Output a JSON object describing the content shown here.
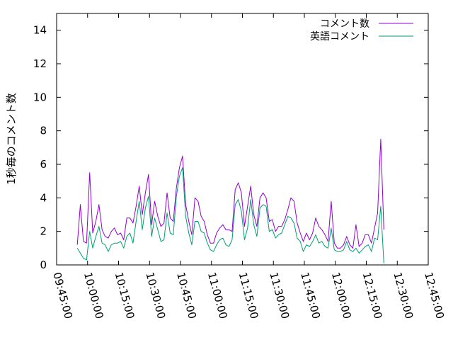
{
  "chart_data": {
    "type": "line",
    "title": "",
    "xlabel": "",
    "ylabel": "1秒毎のコメント数",
    "grid": false,
    "legend_position": "top-right",
    "xlim": [
      "09:45:00",
      "12:45:00"
    ],
    "ylim": [
      0,
      15
    ],
    "x_ticks": [
      "09:45:00",
      "10:00:00",
      "10:15:00",
      "10:30:00",
      "10:45:00",
      "11:00:00",
      "11:15:00",
      "11:30:00",
      "11:45:00",
      "12:00:00",
      "12:15:00",
      "12:30:00",
      "12:45:00"
    ],
    "y_ticks": [
      0,
      2,
      4,
      6,
      8,
      10,
      12,
      14
    ],
    "x_start": "09:55:00",
    "x_step_seconds": 90,
    "series": [
      {
        "name": "コメント数",
        "color": "#9400d3",
        "values": [
          1.2,
          3.6,
          1.4,
          1.3,
          5.5,
          1.9,
          2.6,
          3.6,
          2.1,
          1.7,
          1.6,
          2.0,
          2.2,
          1.8,
          1.9,
          1.5,
          2.8,
          2.8,
          2.5,
          3.5,
          4.7,
          3.0,
          4.3,
          5.4,
          2.4,
          3.8,
          2.9,
          2.3,
          2.5,
          4.3,
          2.8,
          2.6,
          4.6,
          5.8,
          6.5,
          3.6,
          2.6,
          1.8,
          4.0,
          3.8,
          2.9,
          2.6,
          1.8,
          1.3,
          1.3,
          1.9,
          2.2,
          2.4,
          2.1,
          2.1,
          2.0,
          4.5,
          4.9,
          4.3,
          2.3,
          3.5,
          4.7,
          3.0,
          2.3,
          4.0,
          4.3,
          4.0,
          2.6,
          2.7,
          2.0,
          2.3,
          2.3,
          2.7,
          3.3,
          4.0,
          3.8,
          2.5,
          1.9,
          1.4,
          1.9,
          1.5,
          1.9,
          2.8,
          2.3,
          2.1,
          1.8,
          1.4,
          3.8,
          1.3,
          1.0,
          1.0,
          1.2,
          1.7,
          1.2,
          1.0,
          2.4,
          1.1,
          1.3,
          1.8,
          1.8,
          1.3,
          2.2,
          3.1,
          7.5,
          2.1
        ]
      },
      {
        "name": "英語コメント",
        "color": "#009e73",
        "values": [
          1.0,
          0.7,
          0.4,
          0.3,
          2.0,
          1.0,
          1.7,
          2.3,
          1.3,
          1.2,
          0.8,
          1.2,
          1.3,
          1.3,
          1.4,
          1.0,
          1.7,
          1.9,
          1.3,
          2.6,
          3.8,
          2.1,
          3.4,
          4.1,
          1.7,
          2.8,
          2.1,
          1.4,
          1.5,
          3.1,
          1.9,
          1.8,
          4.1,
          5.3,
          5.8,
          2.9,
          1.9,
          1.2,
          2.6,
          2.6,
          2.0,
          1.9,
          1.3,
          0.9,
          0.8,
          1.2,
          1.5,
          1.6,
          1.2,
          1.1,
          1.5,
          3.6,
          3.9,
          3.2,
          1.5,
          2.2,
          3.9,
          2.4,
          1.7,
          3.4,
          3.6,
          3.5,
          2.0,
          2.1,
          1.6,
          1.8,
          1.9,
          2.4,
          2.9,
          2.8,
          2.5,
          1.6,
          1.4,
          0.8,
          1.2,
          1.1,
          1.4,
          1.8,
          1.3,
          1.4,
          1.1,
          1.0,
          2.2,
          0.9,
          0.8,
          0.8,
          0.9,
          1.4,
          0.9,
          0.8,
          1.0,
          0.7,
          0.9,
          1.1,
          1.2,
          0.8,
          1.6,
          1.5,
          3.5,
          0.1
        ]
      }
    ]
  }
}
